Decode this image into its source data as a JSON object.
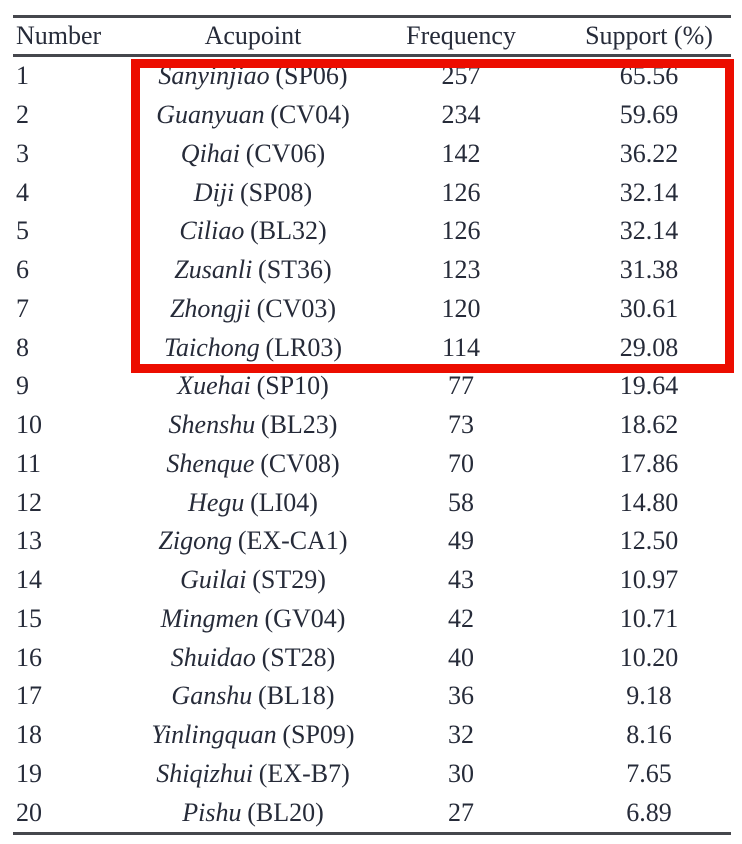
{
  "colors": {
    "ink": "#262b39",
    "rule": "#45474d",
    "background": "#ffffff"
  },
  "table": {
    "header": {
      "number": "Number",
      "acupoint": "Acupoint",
      "frequency": "Frequency",
      "support": "Support (%)"
    },
    "rows": [
      {
        "number": "1",
        "name": "Sanyinjiao",
        "code": "(SP06)",
        "frequency": "257",
        "support": "65.56"
      },
      {
        "number": "2",
        "name": "Guanyuan",
        "code": "(CV04)",
        "frequency": "234",
        "support": "59.69"
      },
      {
        "number": "3",
        "name": "Qihai",
        "code": "(CV06)",
        "frequency": "142",
        "support": "36.22"
      },
      {
        "number": "4",
        "name": "Diji",
        "code": "(SP08)",
        "frequency": "126",
        "support": "32.14"
      },
      {
        "number": "5",
        "name": "Ciliao",
        "code": "(BL32)",
        "frequency": "126",
        "support": "32.14"
      },
      {
        "number": "6",
        "name": "Zusanli",
        "code": "(ST36)",
        "frequency": "123",
        "support": "31.38"
      },
      {
        "number": "7",
        "name": "Zhongji",
        "code": "(CV03)",
        "frequency": "120",
        "support": "30.61"
      },
      {
        "number": "8",
        "name": "Taichong",
        "code": "(LR03)",
        "frequency": "114",
        "support": "29.08"
      },
      {
        "number": "9",
        "name": "Xuehai",
        "code": "(SP10)",
        "frequency": "77",
        "support": "19.64"
      },
      {
        "number": "10",
        "name": "Shenshu",
        "code": "(BL23)",
        "frequency": "73",
        "support": "18.62"
      },
      {
        "number": "11",
        "name": "Shenque",
        "code": "(CV08)",
        "frequency": "70",
        "support": "17.86"
      },
      {
        "number": "12",
        "name": "Hegu",
        "code": "(LI04)",
        "frequency": "58",
        "support": "14.80"
      },
      {
        "number": "13",
        "name": "Zigong",
        "code": "(EX-CA1)",
        "frequency": "49",
        "support": "12.50"
      },
      {
        "number": "14",
        "name": "Guilai",
        "code": "(ST29)",
        "frequency": "43",
        "support": "10.97"
      },
      {
        "number": "15",
        "name": "Mingmen",
        "code": "(GV04)",
        "frequency": "42",
        "support": "10.71"
      },
      {
        "number": "16",
        "name": "Shuidao",
        "code": "(ST28)",
        "frequency": "40",
        "support": "10.20"
      },
      {
        "number": "17",
        "name": "Ganshu",
        "code": "(BL18)",
        "frequency": "36",
        "support": "9.18"
      },
      {
        "number": "18",
        "name": "Yinlingquan",
        "code": "(SP09)",
        "frequency": "32",
        "support": "8.16"
      },
      {
        "number": "19",
        "name": "Shiqizhui",
        "code": "(EX-B7)",
        "frequency": "30",
        "support": "7.65"
      },
      {
        "number": "20",
        "name": "Pishu",
        "code": "(BL20)",
        "frequency": "27",
        "support": "6.89"
      }
    ],
    "highlight": {
      "rows_covered": "1-8",
      "color": "#ec0d00"
    }
  }
}
